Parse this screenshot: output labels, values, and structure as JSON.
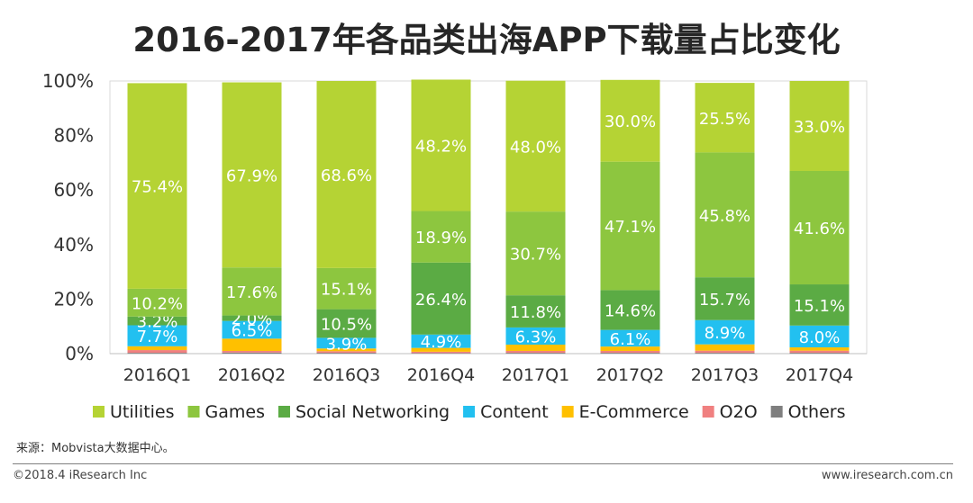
{
  "title": "2016-2017年各品类出海APP下载量占比变化",
  "source": "来源：Mobvista大数据中心。",
  "footer": {
    "copyright": "©2018.4 iResearch Inc",
    "website": "www.iresearch.com.cn"
  },
  "chart_data": {
    "type": "bar",
    "stacked": true,
    "title": "2016-2017年各品类出海APP下载量占比变化",
    "xlabel": "",
    "ylabel": "",
    "ylim": [
      0,
      100
    ],
    "yticks": [
      "0%",
      "20%",
      "40%",
      "60%",
      "80%",
      "100%"
    ],
    "grid": false,
    "legend_position": "bottom",
    "categories": [
      "2016Q1",
      "2016Q2",
      "2016Q3",
      "2016Q4",
      "2017Q1",
      "2017Q2",
      "2017Q3",
      "2017Q4"
    ],
    "series": [
      {
        "name": "Others",
        "color": "#7f7f7f",
        "values": [
          0.3,
          0.4,
          0.3,
          0.2,
          0.3,
          0.3,
          0.3,
          0.3
        ],
        "labels": [
          "",
          "",
          "",
          "",
          "",
          "",
          "",
          ""
        ]
      },
      {
        "name": "O2O",
        "color": "#f08080",
        "values": [
          1.0,
          0.6,
          0.6,
          0.5,
          0.7,
          0.7,
          0.8,
          0.8
        ],
        "labels": [
          "",
          "",
          "",
          "",
          "",
          "",
          "",
          ""
        ]
      },
      {
        "name": "E-Commerce",
        "color": "#ffc000",
        "values": [
          1.4,
          4.5,
          1.0,
          1.4,
          2.3,
          1.6,
          2.3,
          1.2
        ],
        "labels": [
          "",
          "",
          "",
          "",
          "",
          "",
          "",
          ""
        ]
      },
      {
        "name": "Content",
        "color": "#22c0f0",
        "values": [
          7.7,
          6.5,
          3.9,
          4.9,
          6.3,
          6.1,
          8.9,
          8.0
        ],
        "labels": [
          "7.7%",
          "6.5%",
          "3.9%",
          "4.9%",
          "6.3%",
          "6.1%",
          "8.9%",
          "8.0%"
        ]
      },
      {
        "name": "Social Networking",
        "color": "#5bab44",
        "values": [
          3.2,
          2.0,
          10.5,
          26.4,
          11.8,
          14.6,
          15.7,
          15.1
        ],
        "labels": [
          "3.2%",
          "2.0%",
          "10.5%",
          "26.4%",
          "11.8%",
          "14.6%",
          "15.7%",
          "15.1%"
        ]
      },
      {
        "name": "Games",
        "color": "#8dc63f",
        "values": [
          10.2,
          17.6,
          15.1,
          18.9,
          30.7,
          47.1,
          45.8,
          41.6
        ],
        "labels": [
          "10.2%",
          "17.6%",
          "15.1%",
          "18.9%",
          "30.7%",
          "47.1%",
          "45.8%",
          "41.6%"
        ]
      },
      {
        "name": "Utilities",
        "color": "#b5d334",
        "values": [
          75.4,
          67.9,
          68.6,
          48.2,
          48.0,
          30.0,
          25.5,
          33.0
        ],
        "labels": [
          "75.4%",
          "67.9%",
          "68.6%",
          "48.2%",
          "48.0%",
          "30.0%",
          "25.5%",
          "33.0%"
        ]
      }
    ],
    "legend_order": [
      "Utilities",
      "Games",
      "Social Networking",
      "Content",
      "E-Commerce",
      "O2O",
      "Others"
    ]
  }
}
